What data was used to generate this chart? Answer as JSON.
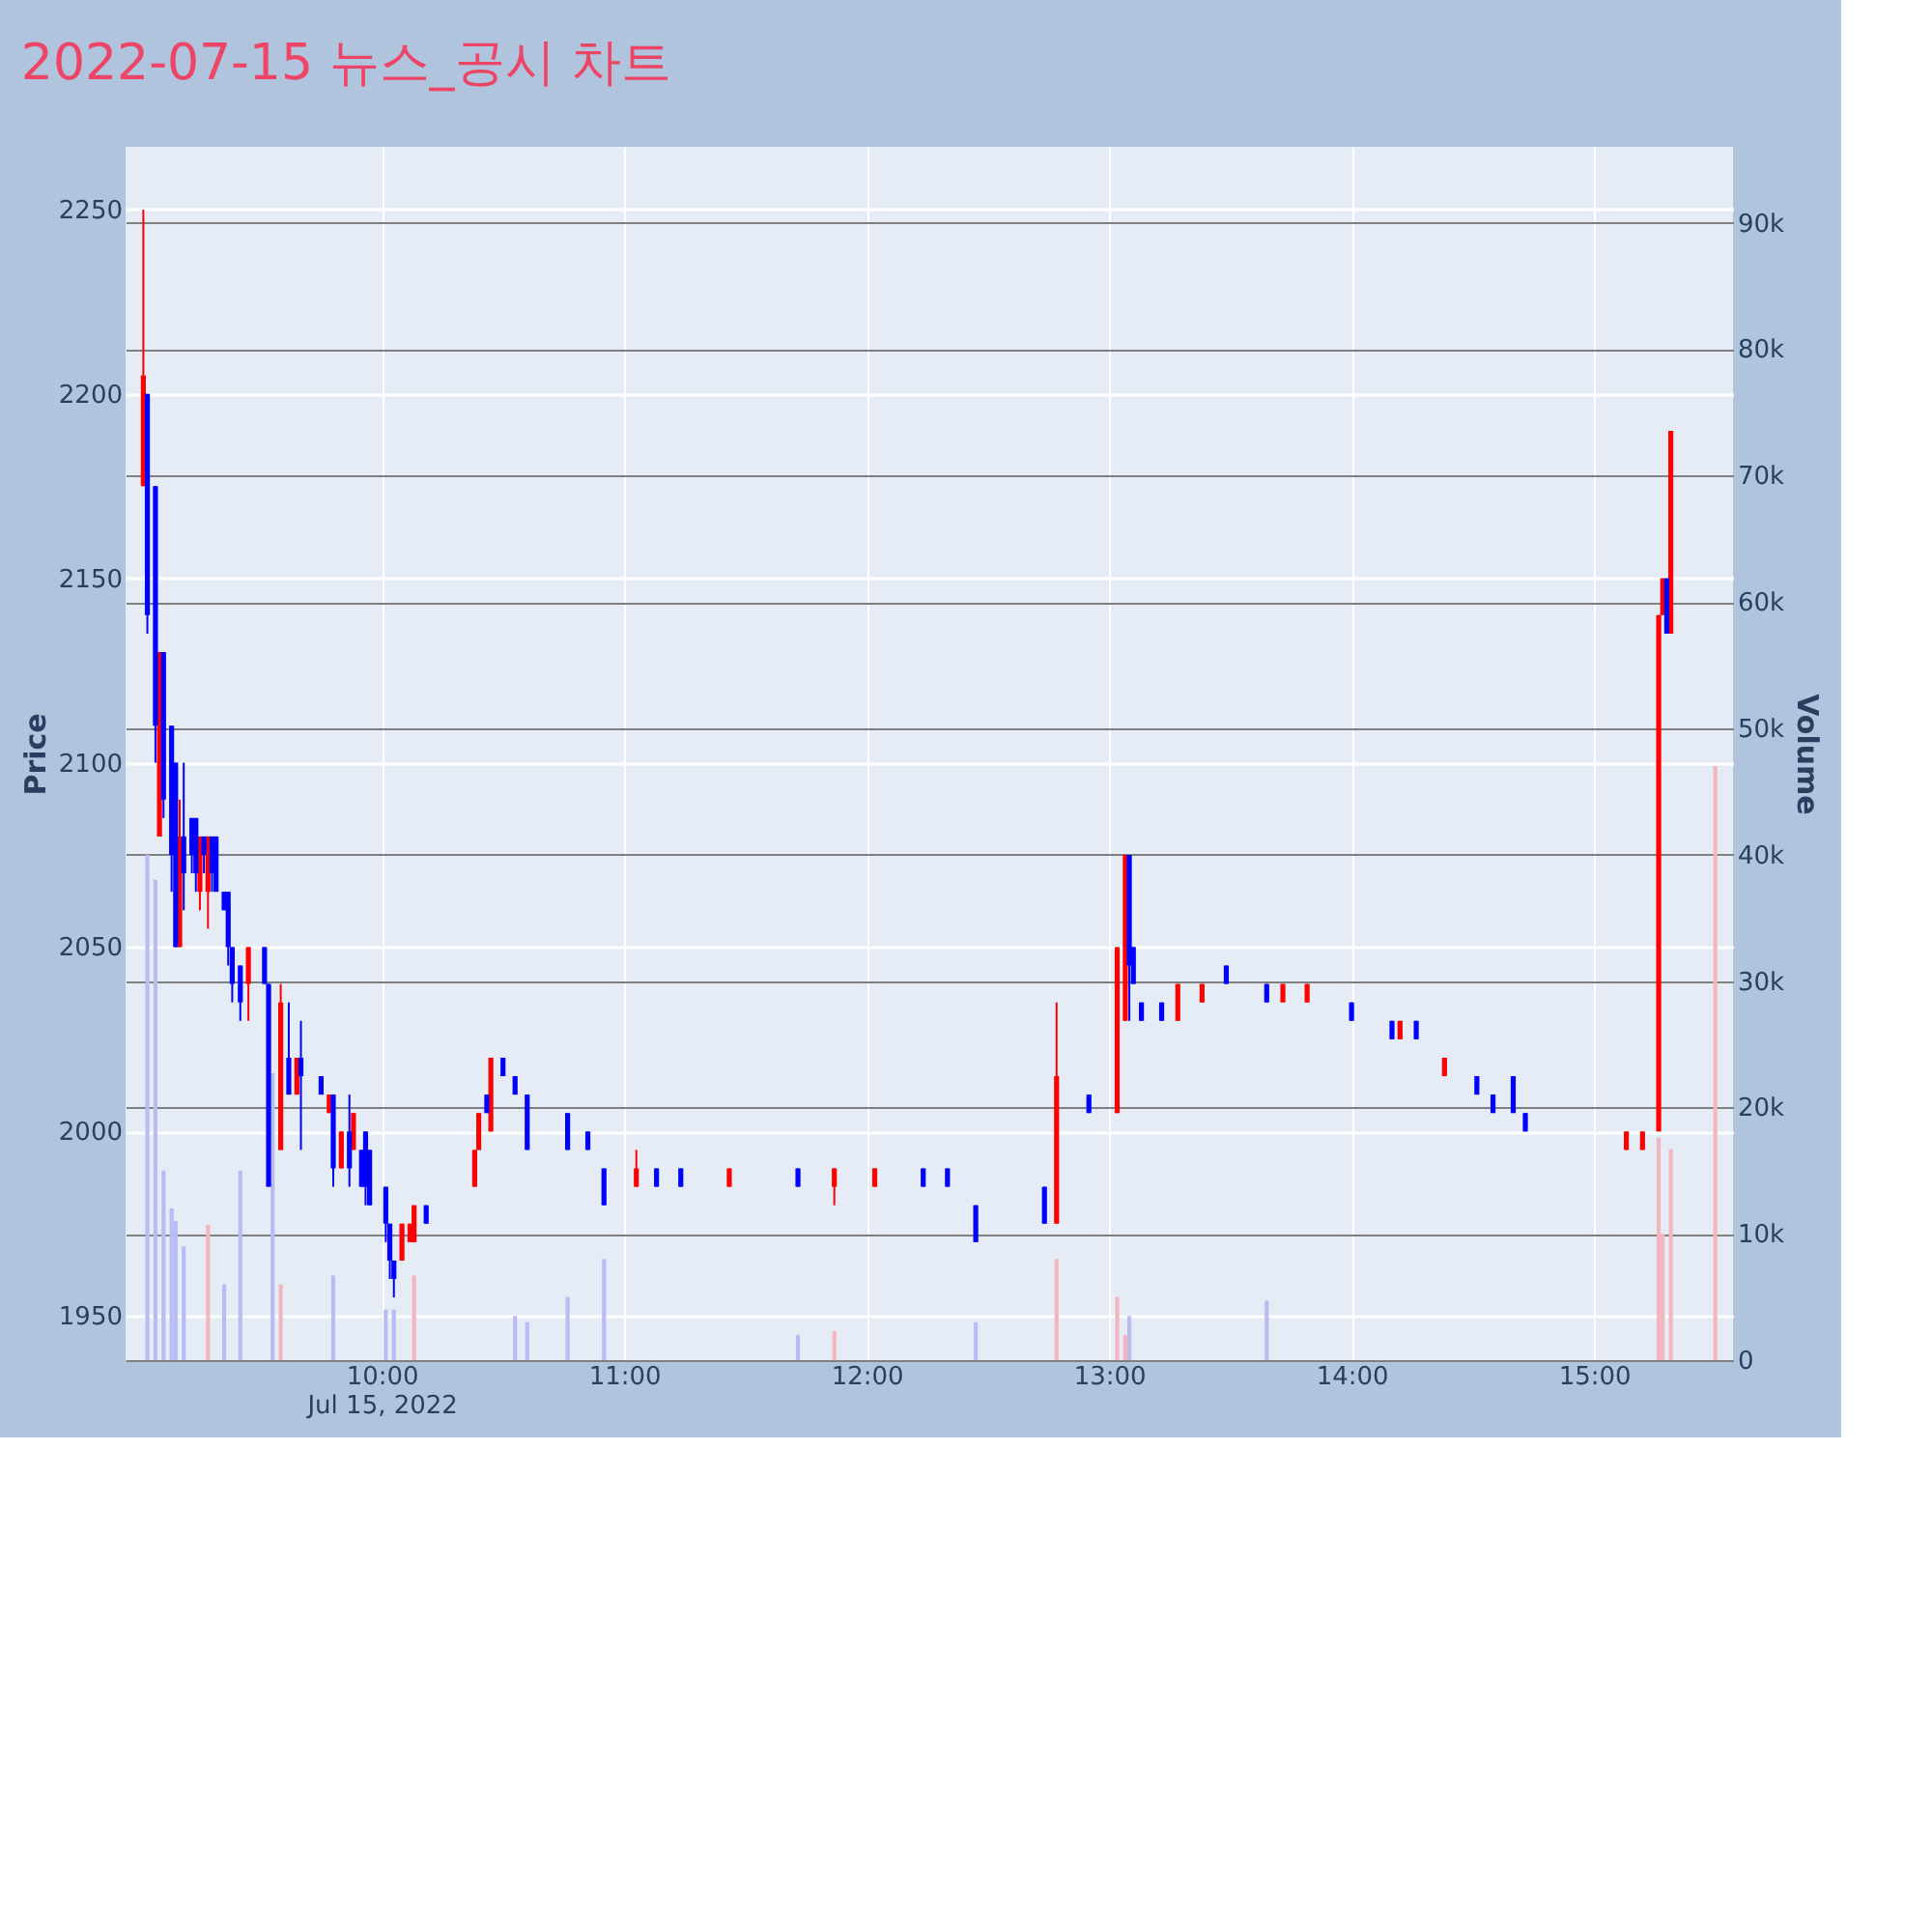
{
  "chart_data": {
    "type": "candlestick",
    "title": "2022-07-15 뉴스_공시 차트",
    "ylabel": "Price",
    "y2label": "Volume",
    "xlim": [
      "2022-07-15T08:59",
      "2022-07-15T15:32"
    ],
    "xticks": [
      {
        "value": "2022-07-15T10:00",
        "label": "10:00\nJul 15, 2022"
      },
      {
        "value": "2022-07-15T11:00",
        "label": "11:00"
      },
      {
        "value": "2022-07-15T12:00",
        "label": "12:00"
      },
      {
        "value": "2022-07-15T13:00",
        "label": "13:00"
      },
      {
        "value": "2022-07-15T14:00",
        "label": "14:00"
      },
      {
        "value": "2022-07-15T15:00",
        "label": "15:00"
      }
    ],
    "ylim": [
      1938,
      2267
    ],
    "yticks": [
      1950,
      2000,
      2050,
      2100,
      2150,
      2200,
      2250
    ],
    "y2lim": [
      0,
      96000
    ],
    "y2ticks": [
      0,
      {
        "value": 10000,
        "label": "10k"
      },
      {
        "value": 20000,
        "label": "20k"
      },
      {
        "value": 30000,
        "label": "30k"
      },
      {
        "value": 40000,
        "label": "40k"
      },
      {
        "value": 50000,
        "label": "50k"
      },
      {
        "value": 60000,
        "label": "60k"
      },
      {
        "value": 70000,
        "label": "70k"
      },
      {
        "value": 80000,
        "label": "80k"
      },
      {
        "value": 90000,
        "label": "90k"
      }
    ],
    "grid": true,
    "series": [
      {
        "type": "bar",
        "axis": "y2",
        "color": "#b7bcf5",
        "x": [
          "2022-07-15T09:02",
          "2022-07-15T09:04",
          "2022-07-15T09:06",
          "2022-07-15T09:08",
          "2022-07-15T09:09",
          "2022-07-15T09:11",
          "2022-07-15T09:21",
          "2022-07-15T09:25",
          "2022-07-15T09:33",
          "2022-07-15T09:48",
          "2022-07-15T10:01",
          "2022-07-15T10:03",
          "2022-07-15T10:33",
          "2022-07-15T10:36",
          "2022-07-15T10:46",
          "2022-07-15T10:55",
          "2022-07-15T11:43",
          "2022-07-15T12:27",
          "2022-07-15T13:05",
          "2022-07-15T13:39"
        ],
        "values": [
          40000,
          38000,
          15000,
          12000,
          11000,
          9000,
          6000,
          15000,
          22700,
          6700,
          4000,
          4000,
          3500,
          3000,
          5000,
          8000,
          2000,
          3000,
          3500,
          4700
        ]
      },
      {
        "type": "bar",
        "axis": "y2",
        "color": "#f4b6be",
        "x": [
          "2022-07-15T09:17",
          "2022-07-15T09:35",
          "2022-07-15T10:08",
          "2022-07-15T11:52",
          "2022-07-15T12:47",
          "2022-07-15T13:02",
          "2022-07-15T13:04",
          "2022-07-15T15:16",
          "2022-07-15T15:17",
          "2022-07-15T15:19",
          "2022-07-15T15:30"
        ],
        "values": [
          10700,
          6000,
          6700,
          2300,
          8000,
          5000,
          2000,
          17600,
          10000,
          16700,
          47000
        ]
      },
      {
        "color": "#ff0000",
        "x": [
          "2022-07-15T09:01",
          "2022-07-15T09:05",
          "2022-07-15T09:10",
          "2022-07-15T09:15",
          "2022-07-15T09:17",
          "2022-07-15T09:27",
          "2022-07-15T09:35",
          "2022-07-15T09:39",
          "2022-07-15T09:47",
          "2022-07-15T09:50",
          "2022-07-15T09:53",
          "2022-07-15T10:05",
          "2022-07-15T10:07",
          "2022-07-15T10:08",
          "2022-07-15T10:23",
          "2022-07-15T10:24",
          "2022-07-15T10:27",
          "2022-07-15T11:03",
          "2022-07-15T11:26",
          "2022-07-15T11:52",
          "2022-07-15T12:02",
          "2022-07-15T12:47",
          "2022-07-15T13:02",
          "2022-07-15T13:04",
          "2022-07-15T13:17",
          "2022-07-15T13:23",
          "2022-07-15T13:43",
          "2022-07-15T13:49",
          "2022-07-15T14:12",
          "2022-07-15T14:23",
          "2022-07-15T15:08",
          "2022-07-15T15:12",
          "2022-07-15T15:16",
          "2022-07-15T15:17",
          "2022-07-15T15:19"
        ],
        "ohlc": [
          [
            2175,
            2250,
            2175,
            2205
          ],
          [
            2080,
            2130,
            2080,
            2130
          ],
          [
            2050,
            2090,
            2050,
            2080
          ],
          [
            2065,
            2080,
            2060,
            2080
          ],
          [
            2065,
            2080,
            2055,
            2080
          ],
          [
            2040,
            2050,
            2030,
            2050
          ],
          [
            1995,
            2040,
            1995,
            2035
          ],
          [
            2010,
            2020,
            2010,
            2020
          ],
          [
            2005,
            2010,
            2005,
            2010
          ],
          [
            1990,
            2000,
            1990,
            2000
          ],
          [
            1995,
            2005,
            1995,
            2005
          ],
          [
            1965,
            1975,
            1965,
            1975
          ],
          [
            1970,
            1975,
            1970,
            1975
          ],
          [
            1970,
            1980,
            1970,
            1980
          ],
          [
            1985,
            1995,
            1985,
            1995
          ],
          [
            1995,
            2005,
            1995,
            2005
          ],
          [
            2000,
            2020,
            2000,
            2020
          ],
          [
            1985,
            1995,
            1985,
            1990
          ],
          [
            1985,
            1990,
            1985,
            1990
          ],
          [
            1985,
            1990,
            1980,
            1990
          ],
          [
            1985,
            1990,
            1985,
            1990
          ],
          [
            1975,
            2035,
            1975,
            2015
          ],
          [
            2005,
            2050,
            2005,
            2050
          ],
          [
            2030,
            2075,
            2030,
            2075
          ],
          [
            2030,
            2040,
            2030,
            2040
          ],
          [
            2035,
            2040,
            2035,
            2040
          ],
          [
            2035,
            2040,
            2035,
            2040
          ],
          [
            2035,
            2040,
            2035,
            2040
          ],
          [
            2025,
            2030,
            2025,
            2030
          ],
          [
            2015,
            2020,
            2015,
            2020
          ],
          [
            1995,
            2000,
            1995,
            2000
          ],
          [
            1995,
            2000,
            1995,
            2000
          ],
          [
            2000,
            2140,
            2000,
            2140
          ],
          [
            2140,
            2150,
            2140,
            2150
          ],
          [
            2135,
            2190,
            2135,
            2190
          ]
        ]
      },
      {
        "color": "#0000ff",
        "x": [
          "2022-07-15T09:02",
          "2022-07-15T09:04",
          "2022-07-15T09:06",
          "2022-07-15T09:08",
          "2022-07-15T09:09",
          "2022-07-15T09:11",
          "2022-07-15T09:13",
          "2022-07-15T09:14",
          "2022-07-15T09:16",
          "2022-07-15T09:18",
          "2022-07-15T09:19",
          "2022-07-15T09:21",
          "2022-07-15T09:22",
          "2022-07-15T09:23",
          "2022-07-15T09:25",
          "2022-07-15T09:31",
          "2022-07-15T09:32",
          "2022-07-15T09:37",
          "2022-07-15T09:40",
          "2022-07-15T09:45",
          "2022-07-15T09:48",
          "2022-07-15T09:52",
          "2022-07-15T09:55",
          "2022-07-15T09:56",
          "2022-07-15T09:57",
          "2022-07-15T10:01",
          "2022-07-15T10:02",
          "2022-07-15T10:03",
          "2022-07-15T10:11",
          "2022-07-15T10:26",
          "2022-07-15T10:30",
          "2022-07-15T10:33",
          "2022-07-15T10:36",
          "2022-07-15T10:46",
          "2022-07-15T10:51",
          "2022-07-15T10:55",
          "2022-07-15T11:08",
          "2022-07-15T11:14",
          "2022-07-15T11:43",
          "2022-07-15T12:14",
          "2022-07-15T12:20",
          "2022-07-15T12:27",
          "2022-07-15T12:44",
          "2022-07-15T12:55",
          "2022-07-15T13:05",
          "2022-07-15T13:06",
          "2022-07-15T13:08",
          "2022-07-15T13:13",
          "2022-07-15T13:29",
          "2022-07-15T13:39",
          "2022-07-15T14:00",
          "2022-07-15T14:10",
          "2022-07-15T14:16",
          "2022-07-15T14:31",
          "2022-07-15T14:35",
          "2022-07-15T14:40",
          "2022-07-15T14:43",
          "2022-07-15T15:18"
        ],
        "ohlc": [
          [
            2200,
            2200,
            2135,
            2140
          ],
          [
            2175,
            2175,
            2100,
            2110
          ],
          [
            2130,
            2130,
            2085,
            2090
          ],
          [
            2110,
            2110,
            2065,
            2075
          ],
          [
            2100,
            2100,
            2050,
            2050
          ],
          [
            2080,
            2100,
            2060,
            2070
          ],
          [
            2085,
            2085,
            2070,
            2075
          ],
          [
            2085,
            2085,
            2065,
            2070
          ],
          [
            2080,
            2080,
            2070,
            2075
          ],
          [
            2080,
            2080,
            2065,
            2070
          ],
          [
            2080,
            2080,
            2065,
            2065
          ],
          [
            2065,
            2065,
            2060,
            2060
          ],
          [
            2065,
            2065,
            2045,
            2050
          ],
          [
            2050,
            2050,
            2035,
            2040
          ],
          [
            2045,
            2045,
            2030,
            2035
          ],
          [
            2050,
            2050,
            2040,
            2040
          ],
          [
            2040,
            2040,
            1985,
            1985
          ],
          [
            2020,
            2035,
            2010,
            2010
          ],
          [
            2020,
            2030,
            1995,
            2015
          ],
          [
            2015,
            2015,
            2010,
            2010
          ],
          [
            2010,
            2010,
            1985,
            1990
          ],
          [
            2000,
            2010,
            1985,
            1990
          ],
          [
            1995,
            1995,
            1985,
            1985
          ],
          [
            2000,
            2000,
            1980,
            1985
          ],
          [
            1995,
            1995,
            1980,
            1980
          ],
          [
            1985,
            1985,
            1970,
            1975
          ],
          [
            1975,
            1975,
            1960,
            1965
          ],
          [
            1965,
            1965,
            1955,
            1960
          ],
          [
            1980,
            1980,
            1975,
            1975
          ],
          [
            2010,
            2010,
            2005,
            2005
          ],
          [
            2020,
            2020,
            2015,
            2015
          ],
          [
            2015,
            2015,
            2010,
            2010
          ],
          [
            2010,
            2010,
            1995,
            1995
          ],
          [
            2005,
            2005,
            1995,
            1995
          ],
          [
            2000,
            2000,
            1995,
            1995
          ],
          [
            1990,
            1990,
            1980,
            1980
          ],
          [
            1990,
            1990,
            1985,
            1985
          ],
          [
            1990,
            1990,
            1985,
            1985
          ],
          [
            1990,
            1990,
            1985,
            1985
          ],
          [
            1990,
            1990,
            1985,
            1985
          ],
          [
            1990,
            1990,
            1985,
            1985
          ],
          [
            1980,
            1980,
            1970,
            1970
          ],
          [
            1985,
            1985,
            1975,
            1975
          ],
          [
            2010,
            2010,
            2005,
            2005
          ],
          [
            2075,
            2075,
            2030,
            2045
          ],
          [
            2050,
            2050,
            2040,
            2040
          ],
          [
            2035,
            2035,
            2030,
            2030
          ],
          [
            2035,
            2035,
            2030,
            2030
          ],
          [
            2045,
            2045,
            2040,
            2040
          ],
          [
            2040,
            2040,
            2035,
            2035
          ],
          [
            2035,
            2035,
            2030,
            2030
          ],
          [
            2030,
            2030,
            2025,
            2025
          ],
          [
            2030,
            2030,
            2025,
            2025
          ],
          [
            2015,
            2015,
            2010,
            2010
          ],
          [
            2010,
            2010,
            2005,
            2005
          ],
          [
            2015,
            2015,
            2005,
            2005
          ],
          [
            2005,
            2005,
            2000,
            2000
          ],
          [
            2150,
            2150,
            2135,
            2135
          ]
        ]
      }
    ]
  }
}
